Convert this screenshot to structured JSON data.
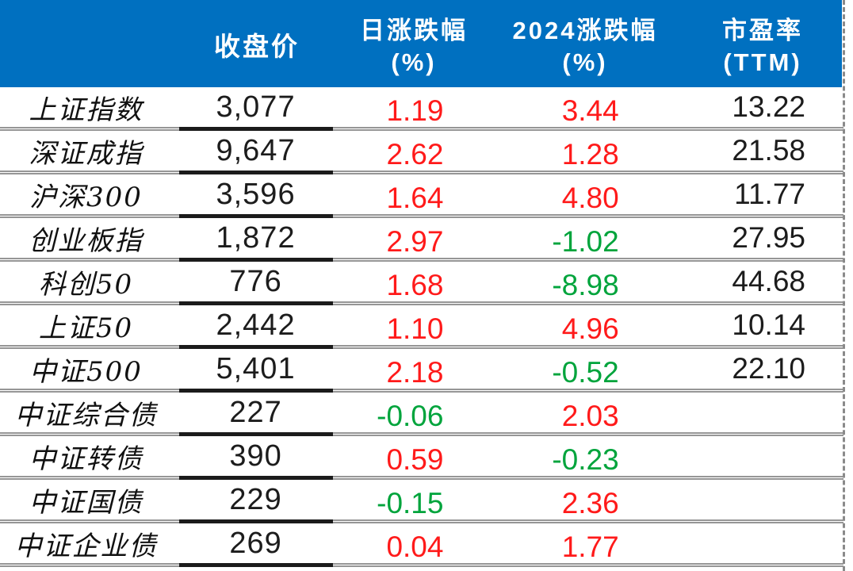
{
  "colors": {
    "header_bg": "#0070C0",
    "up": "#FF1A1A",
    "down": "#00A43C",
    "ink": "#1C1C1C",
    "grid": "#969696"
  },
  "table": {
    "headers": {
      "corner": "",
      "close": "收盘价",
      "daily_l1": "日涨跌幅",
      "daily_l2": "(%)",
      "ytd_l1": "2024涨跌幅",
      "ytd_l2": "(%)",
      "pe_l1": "市盈率",
      "pe_l2": "(TTM)"
    },
    "rows": [
      {
        "name": "上证指数",
        "close": "3,077",
        "daily": "1.19",
        "daily_dir": "up",
        "ytd": "3.44",
        "ytd_dir": "up",
        "pe": "13.22",
        "pe_dir": "flat"
      },
      {
        "name": "深证成指",
        "close": "9,647",
        "daily": "2.62",
        "daily_dir": "up",
        "ytd": "1.28",
        "ytd_dir": "up",
        "pe": "21.58",
        "pe_dir": "flat"
      },
      {
        "name": "沪深300",
        "close": "3,596",
        "daily": "1.64",
        "daily_dir": "up",
        "ytd": "4.80",
        "ytd_dir": "up",
        "pe": "11.77",
        "pe_dir": "flat"
      },
      {
        "name": "创业板指",
        "close": "1,872",
        "daily": "2.97",
        "daily_dir": "up",
        "ytd": "-1.02",
        "ytd_dir": "down",
        "pe": "27.95",
        "pe_dir": "flat"
      },
      {
        "name": "科创50",
        "close": "776",
        "daily": "1.68",
        "daily_dir": "up",
        "ytd": "-8.98",
        "ytd_dir": "down",
        "pe": "44.68",
        "pe_dir": "flat"
      },
      {
        "name": "上证50",
        "close": "2,442",
        "daily": "1.10",
        "daily_dir": "up",
        "ytd": "4.96",
        "ytd_dir": "up",
        "pe": "10.14",
        "pe_dir": "flat"
      },
      {
        "name": "中证500",
        "close": "5,401",
        "daily": "2.18",
        "daily_dir": "up",
        "ytd": "-0.52",
        "ytd_dir": "down",
        "pe": "22.10",
        "pe_dir": "flat"
      },
      {
        "name": "中证综合债",
        "close": "227",
        "daily": "-0.06",
        "daily_dir": "down",
        "ytd": "2.03",
        "ytd_dir": "up",
        "pe": "",
        "pe_dir": "flat"
      },
      {
        "name": "中证转债",
        "close": "390",
        "daily": "0.59",
        "daily_dir": "up",
        "ytd": "-0.23",
        "ytd_dir": "down",
        "pe": "",
        "pe_dir": "flat"
      },
      {
        "name": "中证国债",
        "close": "229",
        "daily": "-0.15",
        "daily_dir": "down",
        "ytd": "2.36",
        "ytd_dir": "up",
        "pe": "",
        "pe_dir": "flat"
      },
      {
        "name": "中证企业债",
        "close": "269",
        "daily": "0.04",
        "daily_dir": "up",
        "ytd": "1.77",
        "ytd_dir": "up",
        "pe": "",
        "pe_dir": "flat"
      }
    ]
  },
  "chart_data": {
    "type": "table",
    "columns": [
      "",
      "收盘价",
      "日涨跌幅(%)",
      "2024涨跌幅(%)",
      "市盈率(TTM)"
    ],
    "rows": [
      [
        "上证指数",
        3077,
        1.19,
        3.44,
        13.22
      ],
      [
        "深证成指",
        9647,
        2.62,
        1.28,
        21.58
      ],
      [
        "沪深300",
        3596,
        1.64,
        4.8,
        11.77
      ],
      [
        "创业板指",
        1872,
        2.97,
        -1.02,
        27.95
      ],
      [
        "科创50",
        776,
        1.68,
        -8.98,
        44.68
      ],
      [
        "上证50",
        2442,
        1.1,
        4.96,
        10.14
      ],
      [
        "中证500",
        5401,
        2.18,
        -0.52,
        22.1
      ],
      [
        "中证综合债",
        227,
        -0.06,
        2.03,
        null
      ],
      [
        "中证转债",
        390,
        0.59,
        -0.23,
        null
      ],
      [
        "中证国债",
        229,
        -0.15,
        2.36,
        null
      ],
      [
        "中证企业债",
        269,
        0.04,
        1.77,
        null
      ]
    ],
    "legend": "positive values red, negative values green; close prices underlined",
    "title": ""
  }
}
